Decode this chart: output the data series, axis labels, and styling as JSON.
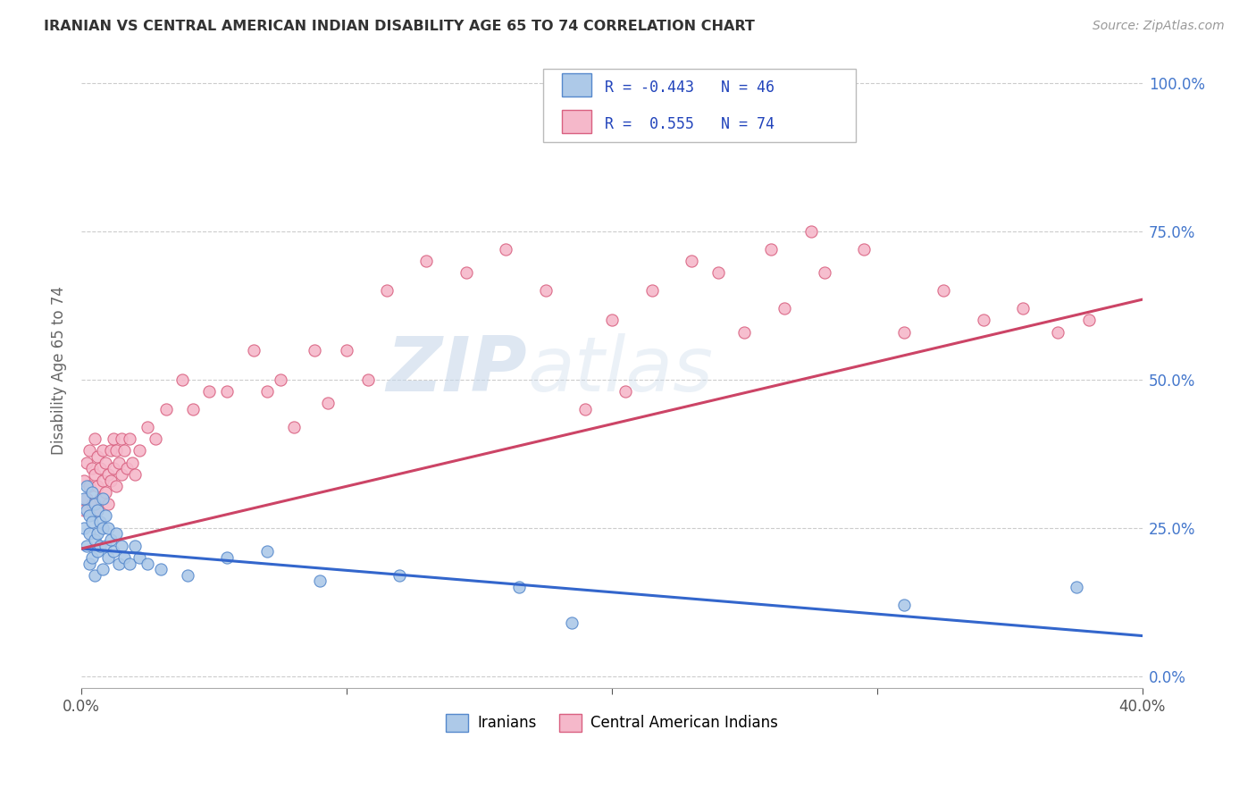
{
  "title": "IRANIAN VS CENTRAL AMERICAN INDIAN DISABILITY AGE 65 TO 74 CORRELATION CHART",
  "source": "Source: ZipAtlas.com",
  "ylabel": "Disability Age 65 to 74",
  "xlim": [
    0.0,
    0.4
  ],
  "ylim": [
    -0.02,
    1.05
  ],
  "ytick_vals": [
    0.0,
    0.25,
    0.5,
    0.75,
    1.0
  ],
  "ytick_labels_right": [
    "0.0%",
    "25.0%",
    "50.0%",
    "75.0%",
    "100.0%"
  ],
  "xtick_vals": [
    0.0,
    0.1,
    0.2,
    0.3,
    0.4
  ],
  "xtick_labels": [
    "0.0%",
    "",
    "",
    "",
    "40.0%"
  ],
  "iranian_color": "#adc9e8",
  "central_american_color": "#f5b8ca",
  "iranian_edge_color": "#5588cc",
  "central_american_edge_color": "#d96080",
  "trend_iranian_color": "#3366cc",
  "trend_central_color": "#cc4466",
  "watermark_zip": "ZIP",
  "watermark_atlas": "atlas",
  "background_color": "#ffffff",
  "grid_color": "#cccccc",
  "iran_trend_x0": 0.0,
  "iran_trend_y0": 0.215,
  "iran_trend_x1": 0.4,
  "iran_trend_y1": 0.068,
  "ca_trend_x0": 0.0,
  "ca_trend_y0": 0.215,
  "ca_trend_x1": 0.4,
  "ca_trend_y1": 0.635,
  "iranians_x": [
    0.001,
    0.001,
    0.002,
    0.002,
    0.002,
    0.003,
    0.003,
    0.003,
    0.004,
    0.004,
    0.004,
    0.005,
    0.005,
    0.005,
    0.006,
    0.006,
    0.006,
    0.007,
    0.007,
    0.008,
    0.008,
    0.008,
    0.009,
    0.009,
    0.01,
    0.01,
    0.011,
    0.012,
    0.013,
    0.014,
    0.015,
    0.016,
    0.018,
    0.02,
    0.022,
    0.025,
    0.03,
    0.04,
    0.055,
    0.07,
    0.09,
    0.12,
    0.165,
    0.185,
    0.31,
    0.375
  ],
  "iranians_y": [
    0.3,
    0.25,
    0.28,
    0.32,
    0.22,
    0.27,
    0.24,
    0.19,
    0.31,
    0.26,
    0.2,
    0.29,
    0.23,
    0.17,
    0.28,
    0.24,
    0.21,
    0.26,
    0.22,
    0.3,
    0.25,
    0.18,
    0.27,
    0.22,
    0.25,
    0.2,
    0.23,
    0.21,
    0.24,
    0.19,
    0.22,
    0.2,
    0.19,
    0.22,
    0.2,
    0.19,
    0.18,
    0.17,
    0.2,
    0.21,
    0.16,
    0.17,
    0.15,
    0.09,
    0.12,
    0.15
  ],
  "central_x": [
    0.001,
    0.001,
    0.002,
    0.002,
    0.003,
    0.003,
    0.004,
    0.004,
    0.005,
    0.005,
    0.006,
    0.006,
    0.006,
    0.007,
    0.007,
    0.008,
    0.008,
    0.009,
    0.009,
    0.01,
    0.01,
    0.011,
    0.011,
    0.012,
    0.012,
    0.013,
    0.013,
    0.014,
    0.015,
    0.015,
    0.016,
    0.017,
    0.018,
    0.019,
    0.02,
    0.022,
    0.025,
    0.028,
    0.032,
    0.038,
    0.042,
    0.048,
    0.055,
    0.065,
    0.075,
    0.088,
    0.1,
    0.115,
    0.13,
    0.145,
    0.16,
    0.175,
    0.2,
    0.215,
    0.23,
    0.25,
    0.265,
    0.28,
    0.295,
    0.31,
    0.325,
    0.34,
    0.355,
    0.368,
    0.38,
    0.19,
    0.205,
    0.24,
    0.26,
    0.275,
    0.07,
    0.08,
    0.093,
    0.108
  ],
  "central_y": [
    0.33,
    0.28,
    0.36,
    0.3,
    0.38,
    0.32,
    0.35,
    0.29,
    0.4,
    0.34,
    0.37,
    0.32,
    0.28,
    0.35,
    0.3,
    0.38,
    0.33,
    0.36,
    0.31,
    0.34,
    0.29,
    0.38,
    0.33,
    0.4,
    0.35,
    0.38,
    0.32,
    0.36,
    0.34,
    0.4,
    0.38,
    0.35,
    0.4,
    0.36,
    0.34,
    0.38,
    0.42,
    0.4,
    0.45,
    0.5,
    0.45,
    0.48,
    0.48,
    0.55,
    0.5,
    0.55,
    0.55,
    0.65,
    0.7,
    0.68,
    0.72,
    0.65,
    0.6,
    0.65,
    0.7,
    0.58,
    0.62,
    0.68,
    0.72,
    0.58,
    0.65,
    0.6,
    0.62,
    0.58,
    0.6,
    0.45,
    0.48,
    0.68,
    0.72,
    0.75,
    0.48,
    0.42,
    0.46,
    0.5
  ]
}
